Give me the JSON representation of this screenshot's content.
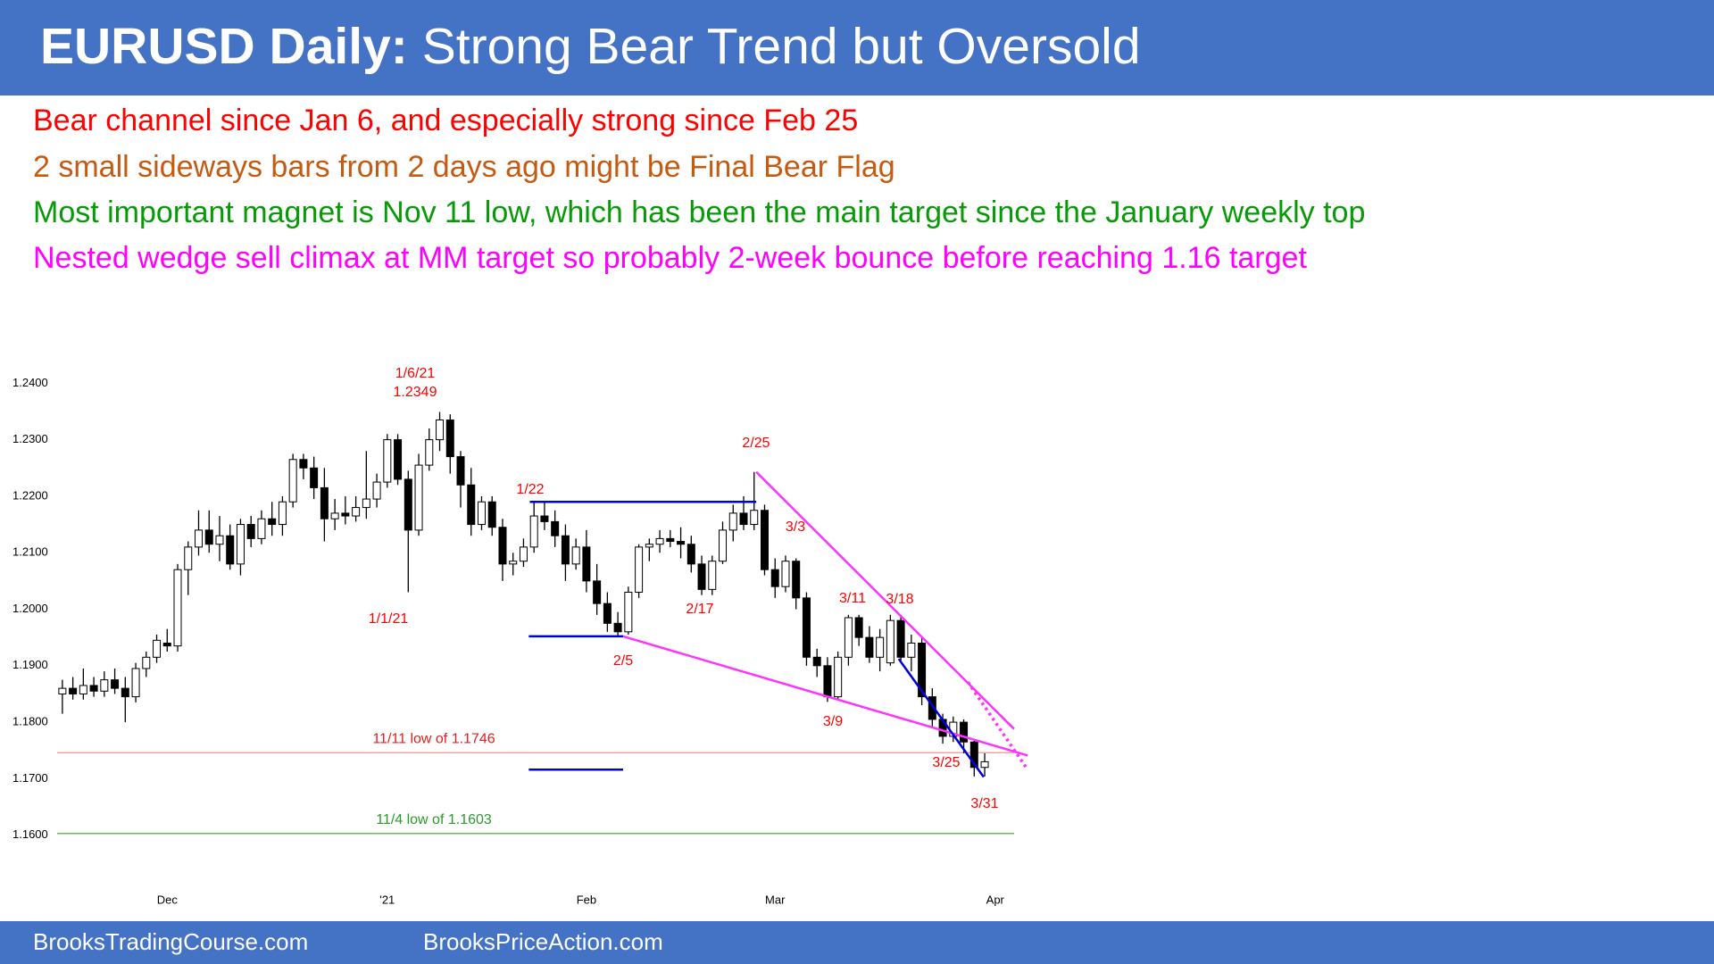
{
  "header": {
    "title_lead": "EURUSD Daily:",
    "title": "Strong Bear Trend but Oversold"
  },
  "notes": [
    {
      "text": "Bear channel since Jan 6, and especially strong since Feb 25",
      "color": "#ff0000"
    },
    {
      "text": "2 small sideways bars from 2 days ago might be Final Bear Flag",
      "color": "#c55a11"
    },
    {
      "text": "Most important magnet is Nov 11 low, which has been the main target since the January weekly top",
      "color": "#079a07"
    },
    {
      "text": "Nested wedge sell climax at MM target so probably 2-week bounce before reaching 1.16 target",
      "color": "#ff00ff"
    }
  ],
  "footer": [
    "BrooksTradingCourse.com",
    "BrooksPriceAction.com"
  ],
  "chart_data": {
    "type": "candlestick",
    "ylim": [
      1.153,
      1.244
    ],
    "yticks": [
      {
        "value": 1.16,
        "label": "1.1600"
      },
      {
        "value": 1.17,
        "label": "1.1700"
      },
      {
        "value": 1.18,
        "label": "1.1800"
      },
      {
        "value": 1.19,
        "label": "1.1900"
      },
      {
        "value": 1.2,
        "label": "1.2000"
      },
      {
        "value": 1.21,
        "label": "1.2100"
      },
      {
        "value": 1.22,
        "label": "1.2200"
      },
      {
        "value": 1.23,
        "label": "1.2300"
      },
      {
        "value": 1.24,
        "label": "1.2400"
      }
    ],
    "xlim": [
      -0.5,
      92
    ],
    "xticks": [
      {
        "value": 10,
        "label": "Dec"
      },
      {
        "value": 31,
        "label": "'21"
      },
      {
        "value": 50,
        "label": "Feb"
      },
      {
        "value": 68,
        "label": "Mar"
      },
      {
        "value": 89,
        "label": "Apr"
      }
    ],
    "up_color": "#ffffff",
    "down_color": "#000000",
    "ohlc": [
      [
        1.185,
        1.1875,
        1.1815,
        1.186
      ],
      [
        1.186,
        1.188,
        1.184,
        1.185
      ],
      [
        1.185,
        1.1895,
        1.184,
        1.1865
      ],
      [
        1.1865,
        1.188,
        1.1845,
        1.1855
      ],
      [
        1.1855,
        1.189,
        1.1845,
        1.1875
      ],
      [
        1.1875,
        1.1895,
        1.185,
        1.186
      ],
      [
        1.186,
        1.188,
        1.18,
        1.1845
      ],
      [
        1.1845,
        1.1905,
        1.1835,
        1.1895
      ],
      [
        1.1895,
        1.1925,
        1.188,
        1.1915
      ],
      [
        1.1915,
        1.1955,
        1.1905,
        1.1945
      ],
      [
        1.194,
        1.1965,
        1.1925,
        1.1935
      ],
      [
        1.1935,
        1.208,
        1.1925,
        1.207
      ],
      [
        1.207,
        1.212,
        1.2025,
        1.211
      ],
      [
        1.211,
        1.2175,
        1.2095,
        1.214
      ],
      [
        1.214,
        1.2175,
        1.21,
        1.2115
      ],
      [
        1.2115,
        1.2165,
        1.2085,
        1.213
      ],
      [
        1.213,
        1.215,
        1.207,
        1.208
      ],
      [
        1.208,
        1.216,
        1.206,
        1.215
      ],
      [
        1.215,
        1.2165,
        1.211,
        1.2125
      ],
      [
        1.2125,
        1.2175,
        1.2115,
        1.216
      ],
      [
        1.216,
        1.219,
        1.213,
        1.215
      ],
      [
        1.215,
        1.22,
        1.213,
        1.219
      ],
      [
        1.219,
        1.2275,
        1.218,
        1.2265
      ],
      [
        1.2265,
        1.2275,
        1.223,
        1.225
      ],
      [
        1.225,
        1.227,
        1.2195,
        1.2215
      ],
      [
        1.2215,
        1.225,
        1.212,
        1.216
      ],
      [
        1.216,
        1.2195,
        1.214,
        1.217
      ],
      [
        1.217,
        1.22,
        1.215,
        1.2165
      ],
      [
        1.2165,
        1.22,
        1.2155,
        1.218
      ],
      [
        1.218,
        1.228,
        1.216,
        1.2195
      ],
      [
        1.2195,
        1.224,
        1.218,
        1.2225
      ],
      [
        1.2225,
        1.231,
        1.2215,
        1.23
      ],
      [
        1.23,
        1.231,
        1.222,
        1.223
      ],
      [
        1.223,
        1.2245,
        1.203,
        1.214
      ],
      [
        1.214,
        1.2275,
        1.213,
        1.2255
      ],
      [
        1.2255,
        1.232,
        1.2245,
        1.23
      ],
      [
        1.23,
        1.2349,
        1.228,
        1.2335
      ],
      [
        1.2335,
        1.2345,
        1.224,
        1.227
      ],
      [
        1.227,
        1.228,
        1.218,
        1.222
      ],
      [
        1.222,
        1.225,
        1.213,
        1.215
      ],
      [
        1.215,
        1.22,
        1.214,
        1.219
      ],
      [
        1.219,
        1.22,
        1.213,
        1.2145
      ],
      [
        1.2145,
        1.216,
        1.205,
        1.208
      ],
      [
        1.208,
        1.21,
        1.206,
        1.2085
      ],
      [
        1.2085,
        1.2125,
        1.2075,
        1.211
      ],
      [
        1.211,
        1.219,
        1.21,
        1.2165
      ],
      [
        1.2165,
        1.219,
        1.214,
        1.2155
      ],
      [
        1.2155,
        1.2175,
        1.211,
        1.213
      ],
      [
        1.213,
        1.215,
        1.205,
        1.208
      ],
      [
        1.208,
        1.2125,
        1.207,
        1.211
      ],
      [
        1.211,
        1.214,
        1.203,
        1.205
      ],
      [
        1.205,
        1.208,
        1.199,
        1.201
      ],
      [
        1.201,
        1.203,
        1.196,
        1.1975
      ],
      [
        1.1975,
        1.1995,
        1.1952,
        1.196
      ],
      [
        1.196,
        1.204,
        1.1955,
        1.203
      ],
      [
        1.203,
        1.2115,
        1.202,
        1.211
      ],
      [
        1.211,
        1.2125,
        1.2085,
        1.2115
      ],
      [
        1.2115,
        1.214,
        1.21,
        1.2125
      ],
      [
        1.2125,
        1.214,
        1.211,
        1.212
      ],
      [
        1.212,
        1.2145,
        1.209,
        1.2115
      ],
      [
        1.2115,
        1.213,
        1.2065,
        1.208
      ],
      [
        1.208,
        1.2095,
        1.2025,
        1.2035
      ],
      [
        1.2035,
        1.2095,
        1.2025,
        1.2085
      ],
      [
        1.2085,
        1.2155,
        1.208,
        1.214
      ],
      [
        1.214,
        1.2185,
        1.212,
        1.217
      ],
      [
        1.217,
        1.22,
        1.214,
        1.215
      ],
      [
        1.215,
        1.2243,
        1.214,
        1.2175
      ],
      [
        1.2175,
        1.2185,
        1.206,
        1.207
      ],
      [
        1.207,
        1.209,
        1.202,
        1.204
      ],
      [
        1.204,
        1.2095,
        1.203,
        1.2085
      ],
      [
        1.2085,
        1.209,
        1.2,
        1.202
      ],
      [
        1.202,
        1.203,
        1.19,
        1.1915
      ],
      [
        1.1915,
        1.193,
        1.188,
        1.19
      ],
      [
        1.19,
        1.1915,
        1.1836,
        1.1845
      ],
      [
        1.1845,
        1.1925,
        1.184,
        1.1915
      ],
      [
        1.1915,
        1.199,
        1.19,
        1.1985
      ],
      [
        1.1985,
        1.199,
        1.1935,
        1.195
      ],
      [
        1.195,
        1.197,
        1.1905,
        1.1915
      ],
      [
        1.1915,
        1.1965,
        1.189,
        1.195
      ],
      [
        1.1905,
        1.199,
        1.19,
        1.198
      ],
      [
        1.198,
        1.199,
        1.1905,
        1.1915
      ],
      [
        1.1915,
        1.1955,
        1.189,
        1.194
      ],
      [
        1.194,
        1.195,
        1.183,
        1.1845
      ],
      [
        1.1845,
        1.186,
        1.179,
        1.1805
      ],
      [
        1.1805,
        1.1815,
        1.1762,
        1.1775
      ],
      [
        1.1775,
        1.181,
        1.1765,
        1.18
      ],
      [
        1.18,
        1.1805,
        1.1745,
        1.1765
      ],
      [
        1.1765,
        1.177,
        1.1704,
        1.172
      ],
      [
        1.172,
        1.1745,
        1.1704,
        1.173
      ]
    ],
    "reference_lines": [
      {
        "label": "11/11 low of 1.1746",
        "value": 1.1746,
        "color": "#f4a3a3",
        "label_color": "#e02020"
      },
      {
        "label": "11/4 low of 1.1603",
        "value": 1.1603,
        "color": "#66bb66",
        "label_color": "#2a9a2a"
      }
    ],
    "lines": [
      {
        "x": [
          44.6,
          66.2
        ],
        "y": [
          1.219,
          1.219
        ],
        "color": "#0000dd"
      },
      {
        "x": [
          44.5,
          53.5
        ],
        "y": [
          1.1952,
          1.1952
        ],
        "color": "#0000dd"
      },
      {
        "x": [
          44.5,
          53.5
        ],
        "y": [
          1.1716,
          1.1716
        ],
        "color": "#0000dd"
      },
      {
        "x": [
          66.2,
          90.8
        ],
        "y": [
          1.2243,
          1.1788
        ],
        "color": "#ff33ff"
      },
      {
        "x": [
          53.5,
          92.1
        ],
        "y": [
          1.1952,
          1.1741
        ],
        "color": "#ff33ff"
      },
      {
        "x": [
          79.8,
          87.9
        ],
        "y": [
          1.1912,
          1.1703
        ],
        "color": "#0000dd"
      },
      {
        "x": [
          86.4,
          92.1
        ],
        "y": [
          1.1871,
          1.1716
        ],
        "color": "#ff33ff",
        "dashed": true
      }
    ],
    "annotations": [
      "1/6/21",
      "1.2349",
      "1/1/21",
      "1/22",
      "2/25",
      "3/3",
      "2/17",
      "2/5",
      "3/11",
      "3/18",
      "3/9",
      "3/25",
      "3/31"
    ],
    "annotation_color": "#ff0000"
  }
}
